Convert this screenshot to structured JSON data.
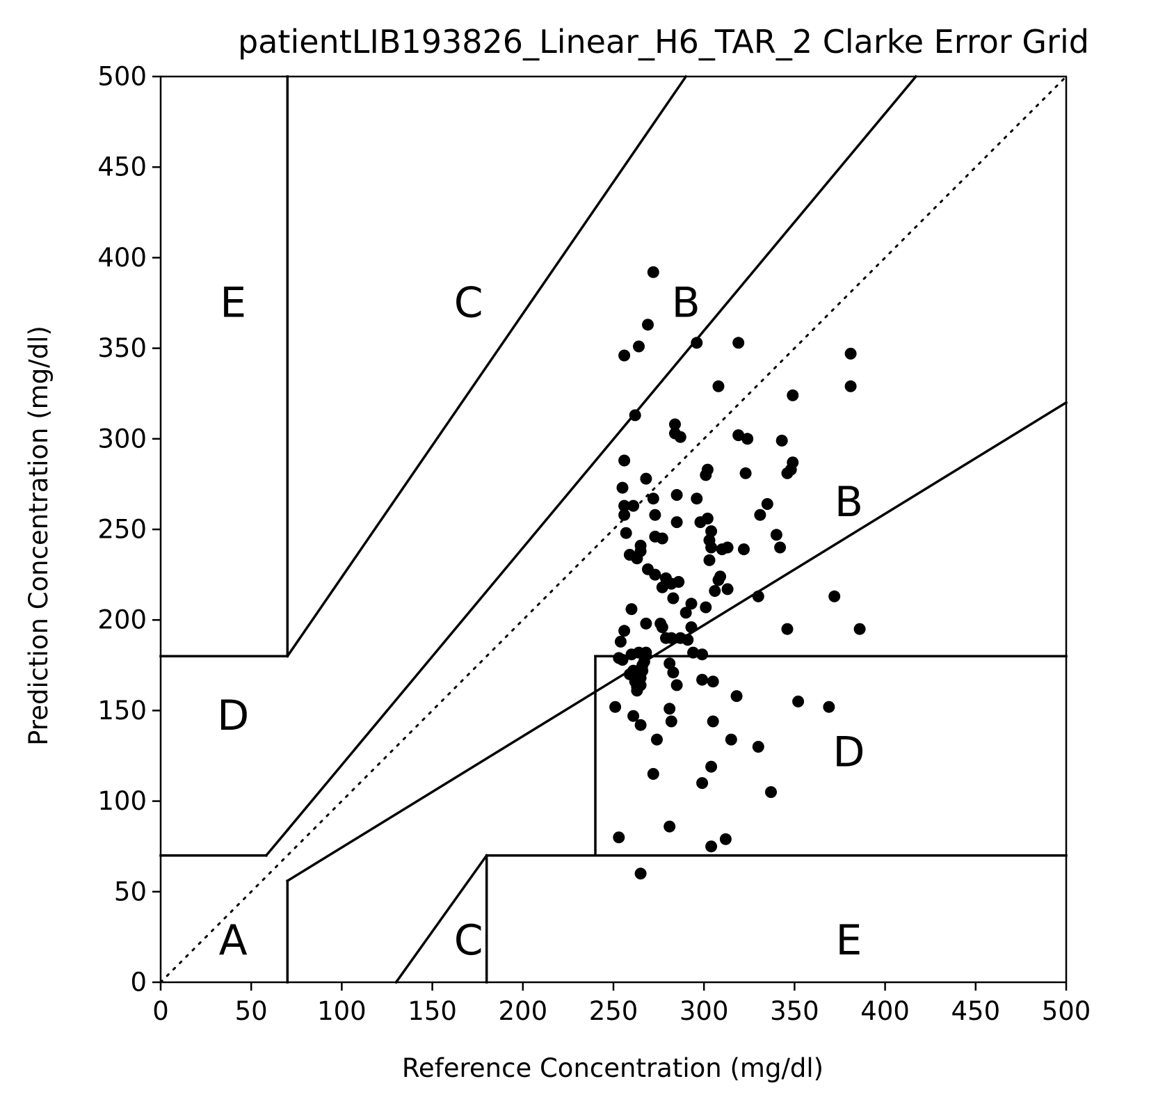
{
  "chart_data": {
    "type": "scatter",
    "title": "patientLIB193826_Linear_H6_TAR_2 Clarke Error Grid",
    "xlabel": "Reference Concentration (mg/dl)",
    "ylabel": "Prediction Concentration (mg/dl)",
    "xlim": [
      0,
      500
    ],
    "ylim": [
      0,
      500
    ],
    "xticks": [
      "0",
      "50",
      "100",
      "150",
      "200",
      "250",
      "300",
      "350",
      "400",
      "450",
      "500"
    ],
    "yticks": [
      "0",
      "50",
      "100",
      "150",
      "200",
      "250",
      "300",
      "350",
      "400",
      "450",
      "500"
    ],
    "grid": false,
    "colors": {
      "points": "#000000",
      "lines": "#000000"
    },
    "zone_lines": [
      [
        [
          0,
          0
        ],
        [
          500,
          500
        ]
      ],
      [
        [
          0,
          70
        ],
        [
          58.3,
          70
        ]
      ],
      [
        [
          58.3,
          70
        ],
        [
          70,
          84
        ]
      ],
      [
        [
          70,
          84
        ],
        [
          417,
          500
        ]
      ],
      [
        [
          70,
          56
        ],
        [
          500,
          320
        ]
      ],
      [
        [
          70,
          56
        ],
        [
          70,
          0
        ]
      ],
      [
        [
          70,
          180
        ],
        [
          70,
          500
        ]
      ],
      [
        [
          70,
          180
        ],
        [
          290,
          500
        ]
      ],
      [
        [
          0,
          180
        ],
        [
          70,
          180
        ]
      ],
      [
        [
          130,
          0
        ],
        [
          180,
          70
        ]
      ],
      [
        [
          180,
          70
        ],
        [
          180,
          0
        ]
      ],
      [
        [
          180,
          70
        ],
        [
          500,
          70
        ]
      ],
      [
        [
          240,
          70
        ],
        [
          240,
          180
        ]
      ],
      [
        [
          240,
          180
        ],
        [
          500,
          180
        ]
      ]
    ],
    "zone_labels": [
      {
        "text": "A",
        "x": 40,
        "y": 23
      },
      {
        "text": "B",
        "x": 290,
        "y": 375
      },
      {
        "text": "B",
        "x": 380,
        "y": 265
      },
      {
        "text": "C",
        "x": 170,
        "y": 375
      },
      {
        "text": "C",
        "x": 170,
        "y": 23
      },
      {
        "text": "D",
        "x": 40,
        "y": 147
      },
      {
        "text": "D",
        "x": 380,
        "y": 127
      },
      {
        "text": "E",
        "x": 40,
        "y": 375
      },
      {
        "text": "E",
        "x": 380,
        "y": 23
      }
    ],
    "points": [
      [
        272,
        392
      ],
      [
        269,
        363
      ],
      [
        256,
        346
      ],
      [
        264,
        351
      ],
      [
        296,
        353
      ],
      [
        319,
        353
      ],
      [
        381,
        347
      ],
      [
        308,
        329
      ],
      [
        381,
        329
      ],
      [
        349,
        324
      ],
      [
        262,
        313
      ],
      [
        284,
        308
      ],
      [
        284,
        303
      ],
      [
        287,
        301
      ],
      [
        319,
        302
      ],
      [
        324,
        300
      ],
      [
        343,
        299
      ],
      [
        349,
        287
      ],
      [
        256,
        288
      ],
      [
        348,
        283
      ],
      [
        302,
        283
      ],
      [
        346,
        281
      ],
      [
        323,
        281
      ],
      [
        301,
        280
      ],
      [
        268,
        278
      ],
      [
        255,
        273
      ],
      [
        285,
        269
      ],
      [
        272,
        267
      ],
      [
        296,
        267
      ],
      [
        335,
        264
      ],
      [
        256,
        263
      ],
      [
        261,
        263
      ],
      [
        256,
        258
      ],
      [
        273,
        258
      ],
      [
        331,
        258
      ],
      [
        302,
        256
      ],
      [
        285,
        254
      ],
      [
        298,
        254
      ],
      [
        304,
        249
      ],
      [
        257,
        248
      ],
      [
        340,
        247
      ],
      [
        273,
        246
      ],
      [
        277,
        245
      ],
      [
        303,
        244
      ],
      [
        265,
        241
      ],
      [
        304,
        240
      ],
      [
        310,
        239
      ],
      [
        313,
        240
      ],
      [
        322,
        239
      ],
      [
        342,
        240
      ],
      [
        265,
        238
      ],
      [
        259,
        236
      ],
      [
        263,
        234
      ],
      [
        303,
        233
      ],
      [
        269,
        228
      ],
      [
        273,
        225
      ],
      [
        279,
        223
      ],
      [
        309,
        224
      ],
      [
        308,
        222
      ],
      [
        286,
        221
      ],
      [
        282,
        220
      ],
      [
        277,
        218
      ],
      [
        306,
        216
      ],
      [
        313,
        217
      ],
      [
        283,
        212
      ],
      [
        372,
        213
      ],
      [
        330,
        213
      ],
      [
        293,
        209
      ],
      [
        301,
        207
      ],
      [
        260,
        206
      ],
      [
        290,
        204
      ],
      [
        276,
        198
      ],
      [
        268,
        198
      ],
      [
        277,
        196
      ],
      [
        386,
        195
      ],
      [
        293,
        196
      ],
      [
        346,
        195
      ],
      [
        256,
        194
      ],
      [
        282,
        190
      ],
      [
        279,
        190
      ],
      [
        291,
        189
      ],
      [
        287,
        190
      ],
      [
        254,
        188
      ],
      [
        294,
        182
      ],
      [
        299,
        181
      ],
      [
        268,
        182
      ],
      [
        264,
        182
      ],
      [
        260,
        181
      ],
      [
        253,
        179
      ],
      [
        255,
        178
      ],
      [
        267,
        177
      ],
      [
        266,
        175
      ],
      [
        266,
        172
      ],
      [
        281,
        176
      ],
      [
        261,
        172
      ],
      [
        283,
        171
      ],
      [
        259,
        170
      ],
      [
        265,
        168
      ],
      [
        262,
        166
      ],
      [
        299,
        167
      ],
      [
        305,
        166
      ],
      [
        263,
        163
      ],
      [
        265,
        164
      ],
      [
        285,
        164
      ],
      [
        263,
        161
      ],
      [
        318,
        158
      ],
      [
        352,
        155
      ],
      [
        251,
        152
      ],
      [
        369,
        152
      ],
      [
        281,
        151
      ],
      [
        261,
        147
      ],
      [
        282,
        144
      ],
      [
        305,
        144
      ],
      [
        265,
        142
      ],
      [
        274,
        134
      ],
      [
        315,
        134
      ],
      [
        330,
        130
      ],
      [
        272,
        115
      ],
      [
        304,
        119
      ],
      [
        299,
        110
      ],
      [
        337,
        105
      ],
      [
        281,
        86
      ],
      [
        253,
        80
      ],
      [
        312,
        79
      ],
      [
        304,
        75
      ],
      [
        265,
        60
      ]
    ]
  }
}
